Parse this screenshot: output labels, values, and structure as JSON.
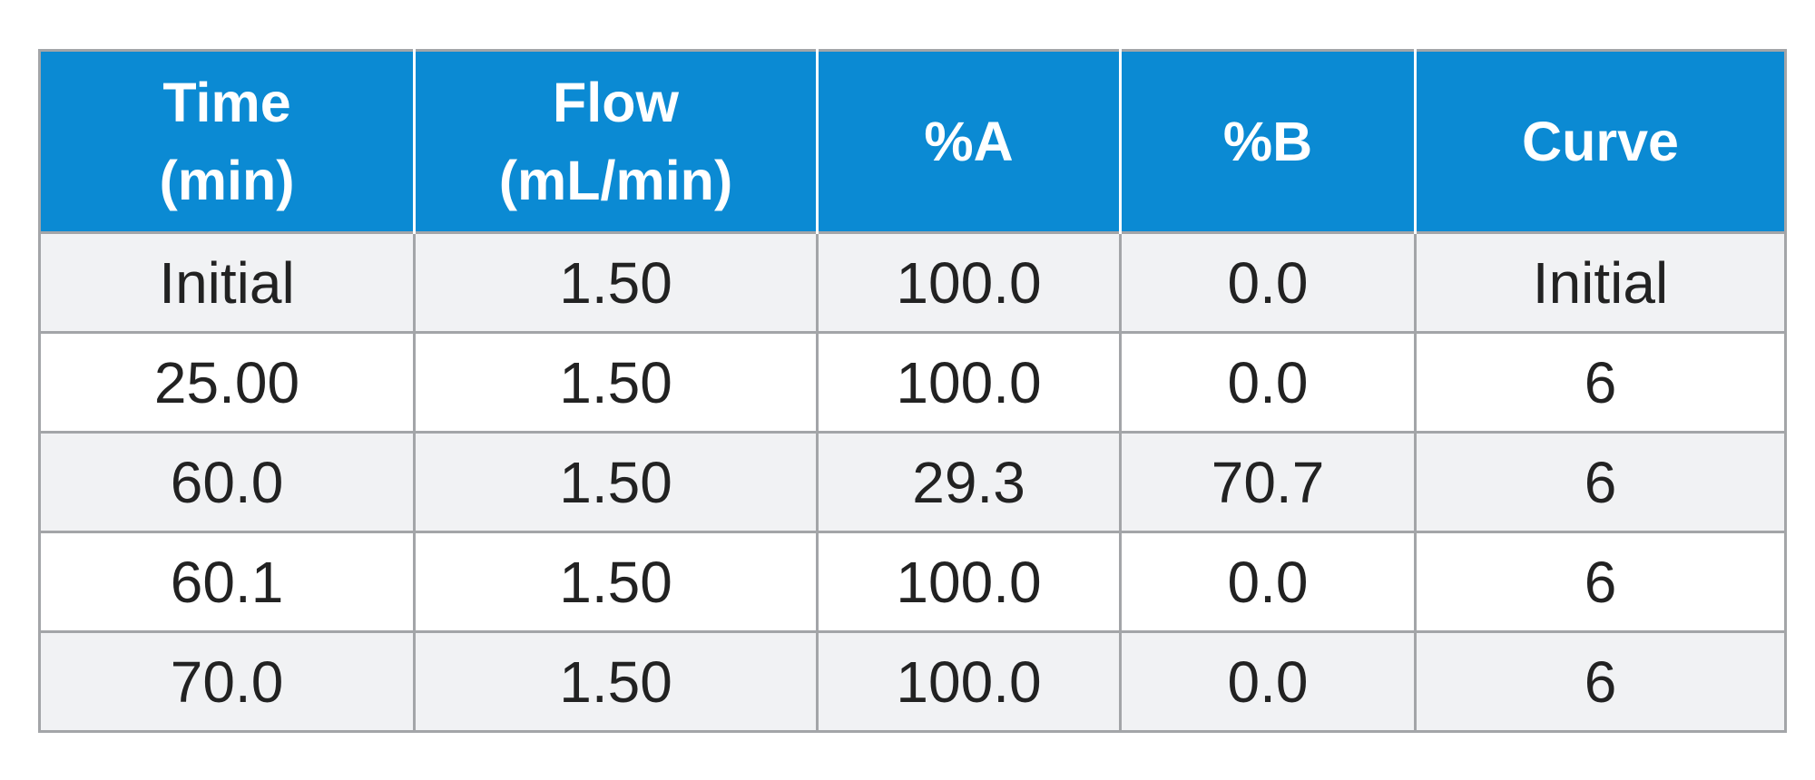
{
  "table": {
    "columns": [
      {
        "line1": "Time",
        "line2": "(min)"
      },
      {
        "line1": "Flow",
        "line2": "(mL/min)"
      },
      {
        "line1": "%A",
        "line2": ""
      },
      {
        "line1": "%B",
        "line2": ""
      },
      {
        "line1": "Curve",
        "line2": ""
      }
    ],
    "rows": [
      [
        "Initial",
        "1.50",
        "100.0",
        "0.0",
        "Initial"
      ],
      [
        "25.00",
        "1.50",
        "100.0",
        "0.0",
        "6"
      ],
      [
        "60.0",
        "1.50",
        "29.3",
        "70.7",
        "6"
      ],
      [
        "60.1",
        "1.50",
        "100.0",
        "0.0",
        "6"
      ],
      [
        "70.0",
        "1.50",
        "100.0",
        "0.0",
        "6"
      ]
    ]
  },
  "colors": {
    "header_background": "#0b8ad3",
    "header_text": "#ffffff",
    "row_shaded": "#f1f2f4",
    "row_plain": "#ffffff",
    "grid_line": "#a3a5a8",
    "body_text": "#222222"
  }
}
